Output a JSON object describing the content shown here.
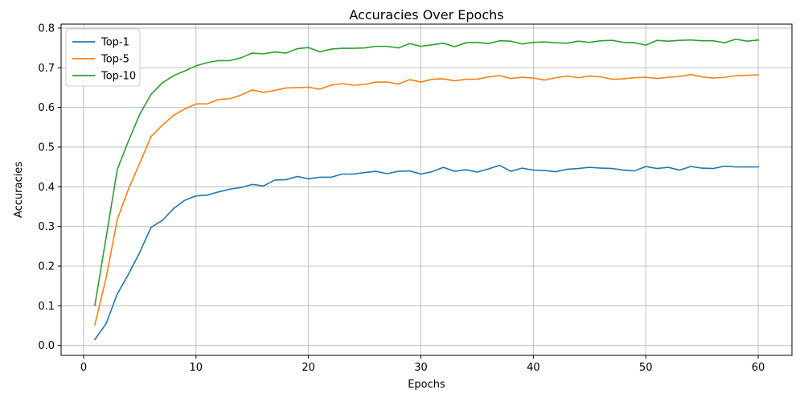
{
  "chart_data": {
    "type": "line",
    "title": "Accuracies Over Epochs",
    "xlabel": "Epochs",
    "ylabel": "Accuracies",
    "xlim": [
      -2,
      63
    ],
    "ylim": [
      -0.025,
      0.81
    ],
    "xticks": [
      0,
      10,
      20,
      30,
      40,
      50,
      60
    ],
    "yticks": [
      0.0,
      0.1,
      0.2,
      0.3,
      0.4,
      0.5,
      0.6,
      0.7,
      0.8
    ],
    "ytick_labels": [
      "0.0",
      "0.1",
      "0.2",
      "0.3",
      "0.4",
      "0.5",
      "0.6",
      "0.7",
      "0.8"
    ],
    "grid": true,
    "legend_position": "top-left",
    "x": [
      1,
      2,
      3,
      4,
      5,
      6,
      7,
      8,
      9,
      10,
      11,
      12,
      13,
      14,
      15,
      16,
      17,
      18,
      19,
      20,
      21,
      22,
      23,
      24,
      25,
      26,
      27,
      28,
      29,
      30,
      31,
      32,
      33,
      34,
      35,
      36,
      37,
      38,
      39,
      40,
      41,
      42,
      43,
      44,
      45,
      46,
      47,
      48,
      49,
      50,
      51,
      52,
      53,
      54,
      55,
      56,
      57,
      58,
      59,
      60
    ],
    "series": [
      {
        "name": "Top-1",
        "color": "#1f77b4",
        "values": [
          0.015,
          0.055,
          0.13,
          0.18,
          0.235,
          0.298,
          0.315,
          0.345,
          0.366,
          0.377,
          0.379,
          0.387,
          0.394,
          0.398,
          0.406,
          0.402,
          0.417,
          0.418,
          0.426,
          0.42,
          0.424,
          0.424,
          0.432,
          0.432,
          0.436,
          0.439,
          0.433,
          0.439,
          0.44,
          0.432,
          0.438,
          0.449,
          0.439,
          0.443,
          0.437,
          0.445,
          0.454,
          0.439,
          0.447,
          0.442,
          0.441,
          0.438,
          0.444,
          0.446,
          0.449,
          0.447,
          0.446,
          0.442,
          0.44,
          0.451,
          0.446,
          0.449,
          0.442,
          0.451,
          0.447,
          0.446,
          0.452,
          0.45,
          0.45,
          0.45
        ]
      },
      {
        "name": "Top-5",
        "color": "#ff7f0e",
        "values": [
          0.052,
          0.17,
          0.318,
          0.395,
          0.46,
          0.527,
          0.555,
          0.58,
          0.596,
          0.609,
          0.609,
          0.62,
          0.622,
          0.631,
          0.644,
          0.638,
          0.643,
          0.649,
          0.65,
          0.651,
          0.646,
          0.656,
          0.66,
          0.656,
          0.658,
          0.664,
          0.664,
          0.659,
          0.67,
          0.664,
          0.671,
          0.672,
          0.667,
          0.671,
          0.671,
          0.677,
          0.68,
          0.673,
          0.676,
          0.674,
          0.669,
          0.675,
          0.679,
          0.675,
          0.679,
          0.677,
          0.671,
          0.672,
          0.675,
          0.676,
          0.673,
          0.676,
          0.678,
          0.683,
          0.677,
          0.674,
          0.676,
          0.68,
          0.681,
          0.682
        ]
      },
      {
        "name": "Top-10",
        "color": "#2ca02c",
        "values": [
          0.101,
          0.272,
          0.444,
          0.516,
          0.583,
          0.633,
          0.662,
          0.68,
          0.692,
          0.705,
          0.713,
          0.718,
          0.718,
          0.725,
          0.737,
          0.735,
          0.74,
          0.737,
          0.748,
          0.751,
          0.74,
          0.747,
          0.749,
          0.749,
          0.75,
          0.754,
          0.754,
          0.75,
          0.761,
          0.754,
          0.758,
          0.762,
          0.753,
          0.763,
          0.764,
          0.761,
          0.768,
          0.767,
          0.76,
          0.764,
          0.765,
          0.763,
          0.762,
          0.767,
          0.764,
          0.768,
          0.769,
          0.764,
          0.763,
          0.757,
          0.769,
          0.767,
          0.769,
          0.77,
          0.768,
          0.768,
          0.763,
          0.772,
          0.767,
          0.77
        ]
      }
    ]
  }
}
